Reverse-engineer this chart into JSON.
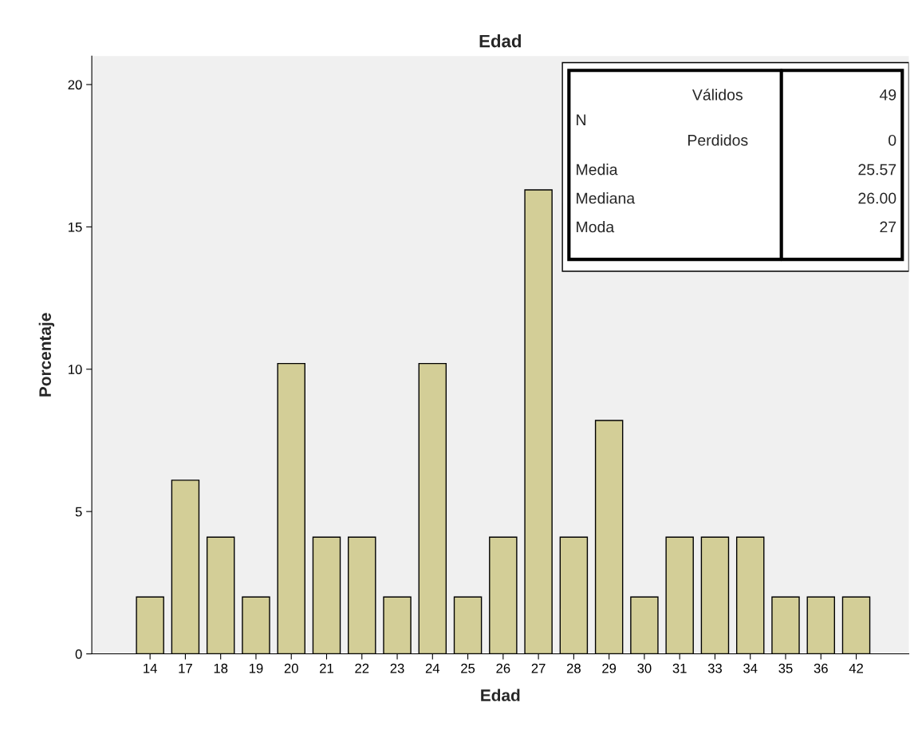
{
  "chart_data": {
    "type": "bar",
    "title": "Edad",
    "xlabel": "Edad",
    "ylabel": "Porcentaje",
    "categories": [
      "14",
      "17",
      "18",
      "19",
      "20",
      "21",
      "22",
      "23",
      "24",
      "25",
      "26",
      "27",
      "28",
      "29",
      "30",
      "31",
      "33",
      "34",
      "35",
      "36",
      "42"
    ],
    "values": [
      2.0,
      6.1,
      4.1,
      2.0,
      10.2,
      4.1,
      4.1,
      2.0,
      10.2,
      2.0,
      4.1,
      16.3,
      4.1,
      8.2,
      2.0,
      4.1,
      4.1,
      4.1,
      2.0,
      2.0,
      2.0
    ],
    "color": "#d3ce97",
    "ylim": [
      0,
      21
    ],
    "yticks": [
      0,
      5,
      10,
      15,
      20
    ],
    "grid": false,
    "legend": false,
    "annotations": [
      "N",
      "Válidos",
      "49",
      "Perdidos",
      "0",
      "Media",
      "25.57",
      "Mediana",
      "26.00",
      "Moda",
      "27"
    ]
  }
}
